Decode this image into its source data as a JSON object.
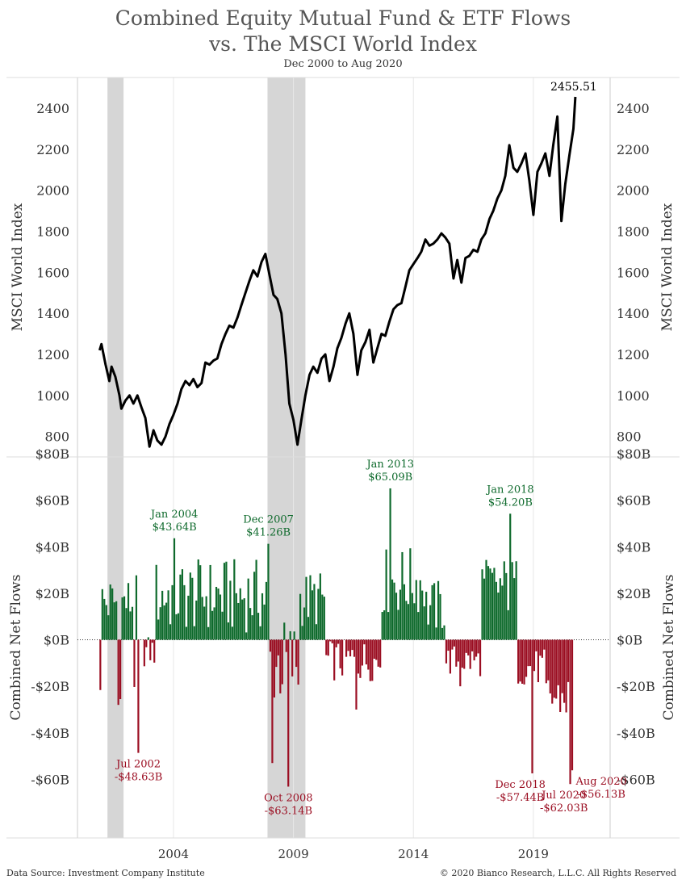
{
  "title": "Combined Equity Mutual Fund & ETF Flows",
  "title_line2": "vs. The MSCI World Index",
  "subtitle": "Dec 2000 to Aug 2020",
  "footer": {
    "source": "Data Source: Investment Company Institute",
    "copyright": "© 2020 Bianco Research, L.L.C. All Rights Reserved"
  },
  "colors": {
    "inflow": "#0e6a2c",
    "outflow": "#9b0e22",
    "line": "#000000",
    "recession": "#d6d6d6",
    "grid": "#e8e8e8"
  },
  "chart_data": [
    {
      "type": "line",
      "series": [
        {
          "name": "MSCI World Index",
          "color": "#000000"
        }
      ],
      "ylabel": "MSCI World Index",
      "ylim": [
        700,
        2550
      ],
      "yticks": [
        800,
        1000,
        1200,
        1400,
        1600,
        1800,
        2000,
        2200,
        2400
      ],
      "end_label": "2455.51",
      "points": [
        [
          2000.92,
          1220
        ],
        [
          2001.0,
          1250
        ],
        [
          2001.17,
          1150
        ],
        [
          2001.33,
          1070
        ],
        [
          2001.42,
          1140
        ],
        [
          2001.58,
          1090
        ],
        [
          2001.75,
          1000
        ],
        [
          2001.83,
          935
        ],
        [
          2002.0,
          975
        ],
        [
          2002.17,
          1000
        ],
        [
          2002.33,
          960
        ],
        [
          2002.5,
          1000
        ],
        [
          2002.67,
          940
        ],
        [
          2002.83,
          890
        ],
        [
          2003.0,
          750
        ],
        [
          2003.17,
          830
        ],
        [
          2003.33,
          780
        ],
        [
          2003.5,
          760
        ],
        [
          2003.67,
          800
        ],
        [
          2003.83,
          860
        ],
        [
          2004.0,
          905
        ],
        [
          2004.17,
          960
        ],
        [
          2004.33,
          1030
        ],
        [
          2004.5,
          1070
        ],
        [
          2004.67,
          1050
        ],
        [
          2004.83,
          1080
        ],
        [
          2005.0,
          1040
        ],
        [
          2005.17,
          1060
        ],
        [
          2005.33,
          1160
        ],
        [
          2005.5,
          1150
        ],
        [
          2005.67,
          1170
        ],
        [
          2005.83,
          1180
        ],
        [
          2006.0,
          1250
        ],
        [
          2006.17,
          1300
        ],
        [
          2006.33,
          1340
        ],
        [
          2006.5,
          1330
        ],
        [
          2006.67,
          1380
        ],
        [
          2006.83,
          1440
        ],
        [
          2007.0,
          1500
        ],
        [
          2007.17,
          1560
        ],
        [
          2007.33,
          1610
        ],
        [
          2007.5,
          1580
        ],
        [
          2007.67,
          1650
        ],
        [
          2007.83,
          1690
        ],
        [
          2008.0,
          1590
        ],
        [
          2008.17,
          1490
        ],
        [
          2008.33,
          1470
        ],
        [
          2008.5,
          1400
        ],
        [
          2008.67,
          1200
        ],
        [
          2008.83,
          960
        ],
        [
          2009.0,
          880
        ],
        [
          2009.17,
          760
        ],
        [
          2009.33,
          880
        ],
        [
          2009.5,
          1000
        ],
        [
          2009.67,
          1100
        ],
        [
          2009.83,
          1140
        ],
        [
          2010.0,
          1110
        ],
        [
          2010.17,
          1180
        ],
        [
          2010.33,
          1200
        ],
        [
          2010.5,
          1070
        ],
        [
          2010.67,
          1140
        ],
        [
          2010.83,
          1230
        ],
        [
          2011.0,
          1280
        ],
        [
          2011.17,
          1350
        ],
        [
          2011.33,
          1400
        ],
        [
          2011.5,
          1300
        ],
        [
          2011.67,
          1100
        ],
        [
          2011.83,
          1220
        ],
        [
          2012.0,
          1260
        ],
        [
          2012.17,
          1320
        ],
        [
          2012.33,
          1160
        ],
        [
          2012.5,
          1230
        ],
        [
          2012.67,
          1300
        ],
        [
          2012.83,
          1290
        ],
        [
          2013.0,
          1360
        ],
        [
          2013.17,
          1420
        ],
        [
          2013.33,
          1440
        ],
        [
          2013.5,
          1450
        ],
        [
          2013.67,
          1530
        ],
        [
          2013.83,
          1610
        ],
        [
          2014.0,
          1640
        ],
        [
          2014.17,
          1670
        ],
        [
          2014.33,
          1700
        ],
        [
          2014.5,
          1760
        ],
        [
          2014.67,
          1730
        ],
        [
          2014.83,
          1740
        ],
        [
          2015.0,
          1760
        ],
        [
          2015.17,
          1790
        ],
        [
          2015.33,
          1770
        ],
        [
          2015.5,
          1740
        ],
        [
          2015.67,
          1570
        ],
        [
          2015.83,
          1660
        ],
        [
          2016.0,
          1550
        ],
        [
          2016.17,
          1670
        ],
        [
          2016.33,
          1680
        ],
        [
          2016.5,
          1710
        ],
        [
          2016.67,
          1700
        ],
        [
          2016.83,
          1760
        ],
        [
          2017.0,
          1790
        ],
        [
          2017.17,
          1860
        ],
        [
          2017.33,
          1900
        ],
        [
          2017.5,
          1960
        ],
        [
          2017.67,
          2000
        ],
        [
          2017.83,
          2070
        ],
        [
          2018.0,
          2220
        ],
        [
          2018.17,
          2110
        ],
        [
          2018.33,
          2090
        ],
        [
          2018.5,
          2130
        ],
        [
          2018.67,
          2180
        ],
        [
          2018.83,
          2050
        ],
        [
          2019.0,
          1880
        ],
        [
          2019.17,
          2090
        ],
        [
          2019.33,
          2130
        ],
        [
          2019.5,
          2180
        ],
        [
          2019.67,
          2070
        ],
        [
          2019.83,
          2220
        ],
        [
          2020.0,
          2360
        ],
        [
          2020.17,
          1850
        ],
        [
          2020.33,
          2030
        ],
        [
          2020.5,
          2170
        ],
        [
          2020.67,
          2300
        ],
        [
          2020.75,
          2455.51
        ]
      ]
    },
    {
      "type": "bar",
      "series": [
        {
          "name": "Combined Net Flows",
          "units": "$B"
        }
      ],
      "ylabel": "Combined Net Flows",
      "ylim": [
        -80,
        80
      ],
      "yticks": [
        -60,
        -40,
        -20,
        0,
        20,
        40,
        60,
        80
      ],
      "ytick_labels": [
        "-$60B",
        "-$40B",
        "-$20B",
        "$0B",
        "$20B",
        "$40B",
        "$60B",
        "$80B"
      ],
      "x": [],
      "values": [],
      "annotations": [
        {
          "date": "Jul 2002",
          "value_label": "-$48.63B",
          "value": -48.63
        },
        {
          "date": "Jan 2004",
          "value_label": "$43.64B",
          "value": 43.64
        },
        {
          "date": "Dec 2007",
          "value_label": "$41.26B",
          "value": 41.26
        },
        {
          "date": "Oct 2008",
          "value_label": "-$63.14B",
          "value": -63.14
        },
        {
          "date": "Jan 2013",
          "value_label": "$65.09B",
          "value": 65.09
        },
        {
          "date": "Jan 2018",
          "value_label": "$54.20B",
          "value": 54.2
        },
        {
          "date": "Dec 2018",
          "value_label": "-$57.44B",
          "value": -57.44
        },
        {
          "date": "Jul 2020",
          "value_label": "-$62.03B",
          "value": -62.03
        },
        {
          "date": "Aug 2020",
          "value_label": "-$56.13B",
          "value": -56.13
        }
      ]
    }
  ],
  "x_axis": {
    "ticks": [
      2004,
      2009,
      2014,
      2019
    ],
    "tick_labels": [
      "2004",
      "2009",
      "2014",
      "2019"
    ],
    "range": [
      2000,
      2022.2
    ]
  },
  "recession_bands": [
    [
      2001.25,
      2001.92
    ],
    [
      2007.92,
      2009.5
    ]
  ]
}
